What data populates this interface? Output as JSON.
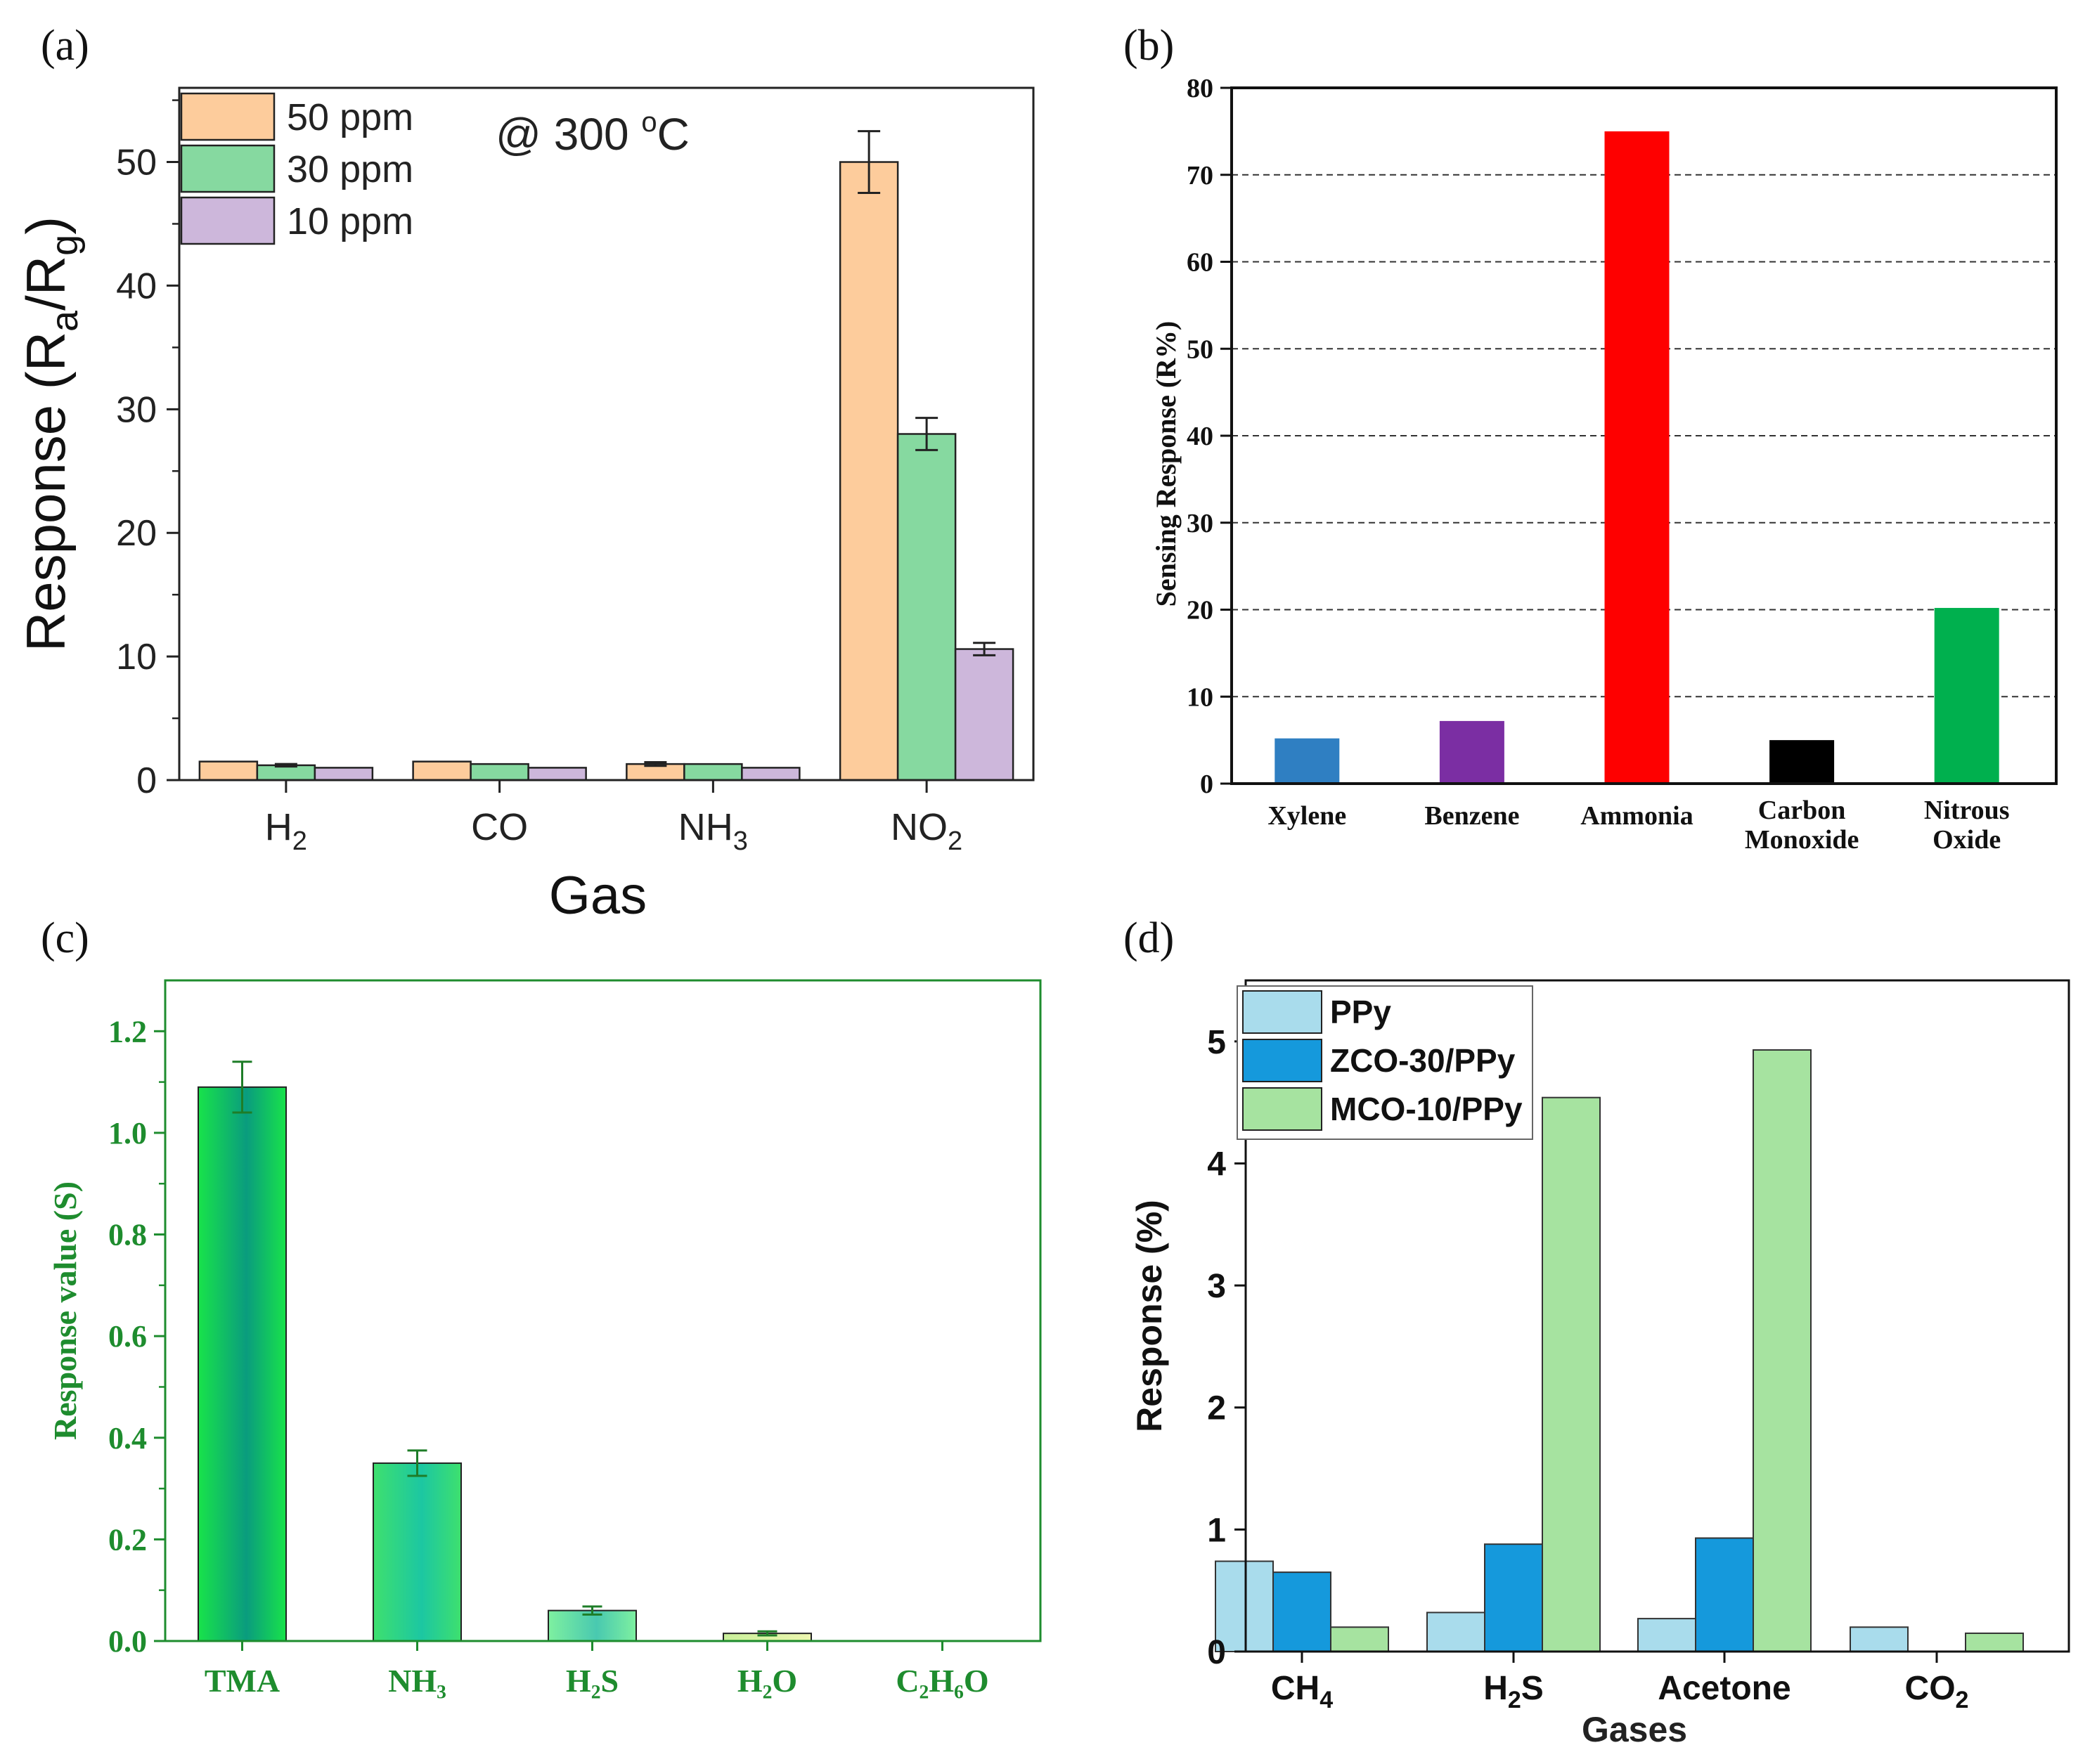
{
  "panels": [
    {
      "letter": "(a)",
      "chart_data": {
        "type": "bar",
        "categories": [
          "H2",
          "CO",
          "NH3",
          "NO2"
        ],
        "category_labels": [
          {
            "main": "H",
            "sub": "2",
            "tail": ""
          },
          {
            "main": "CO",
            "sub": "",
            "tail": ""
          },
          {
            "main": "NH",
            "sub": "3",
            "tail": ""
          },
          {
            "main": "NO",
            "sub": "2",
            "tail": ""
          }
        ],
        "series": [
          {
            "name": "50 ppm",
            "values": [
              1.5,
              1.5,
              1.3,
              50.0
            ],
            "errors": [
              0,
              0,
              0.15,
              2.5
            ],
            "color": "#fdcc9c"
          },
          {
            "name": "30 ppm",
            "values": [
              1.2,
              1.3,
              1.3,
              28.0
            ],
            "errors": [
              0.1,
              0,
              0,
              1.3
            ],
            "color": "#86d9a0"
          },
          {
            "name": "10 ppm",
            "values": [
              1.0,
              1.0,
              1.0,
              10.6
            ],
            "errors": [
              0,
              0,
              0,
              0.5
            ],
            "color": "#cdb7db"
          }
        ],
        "annotation": {
          "prefix": "@ 300 ",
          "sup": "o",
          "suffix": "C"
        },
        "ylabel": {
          "pre": "Response (R",
          "sub1": "a",
          "mid": "/R",
          "sub2": "g",
          "post": ")"
        },
        "xlabel": "Gas",
        "ylim": [
          0,
          56
        ],
        "yticks": [
          0,
          10,
          20,
          30,
          40,
          50
        ],
        "legend_position": "top-left",
        "grid": false
      }
    },
    {
      "letter": "(b)",
      "chart_data": {
        "type": "bar",
        "categories": [
          "Xylene",
          "Benzene",
          "Ammonia",
          "Carbon Monoxide",
          "Nitrous Oxide"
        ],
        "category_lines": [
          [
            "Xylene"
          ],
          [
            "Benzene"
          ],
          [
            "Ammonia"
          ],
          [
            "Carbon",
            "Monoxide"
          ],
          [
            "Nitrous",
            "Oxide"
          ]
        ],
        "values": [
          5.2,
          7.2,
          75.0,
          5.0,
          20.2
        ],
        "colors": [
          "#2f7fc2",
          "#7b2ea3",
          "#fe0000",
          "#000000",
          "#00b04e"
        ],
        "ylabel": "Sensing Response (R%)",
        "xlabel": "",
        "ylim": [
          0,
          80
        ],
        "yticks": [
          0,
          10,
          20,
          30,
          40,
          50,
          60,
          70,
          80
        ],
        "grid": "horizontal dashed"
      }
    },
    {
      "letter": "(c)",
      "chart_data": {
        "type": "bar",
        "categories": [
          "TMA",
          "NH3",
          "H2S",
          "H2O",
          "C2H6O"
        ],
        "category_labels": [
          "TMA",
          "NH₃",
          "H₂S",
          "H₂O",
          "C₂H₆O"
        ],
        "values": [
          1.09,
          0.35,
          0.06,
          0.015,
          0.0
        ],
        "errors": [
          0.05,
          0.025,
          0.008,
          0.004,
          0
        ],
        "ylabel": "Response value (S)",
        "xlabel": "",
        "ylim": [
          0,
          1.3
        ],
        "yticks": [
          0.0,
          0.2,
          0.4,
          0.6,
          0.8,
          1.0,
          1.2
        ],
        "ytick_labels": [
          "0.0",
          "0.2",
          "0.4",
          "0.6",
          "0.8",
          "1.0",
          "1.2"
        ],
        "axis_color": "#1e8c2e",
        "grid": false
      }
    },
    {
      "letter": "(d)",
      "chart_data": {
        "type": "bar",
        "categories": [
          "CH4",
          "H2S",
          "Acetone",
          "CO2"
        ],
        "category_labels": [
          {
            "main": "CH",
            "sub": "4",
            "tail": ""
          },
          {
            "main": "H",
            "sub": "2",
            "tail": "S"
          },
          {
            "main": "Acetone",
            "sub": "",
            "tail": ""
          },
          {
            "main": "CO",
            "sub": "2",
            "tail": ""
          }
        ],
        "series": [
          {
            "name": "PPy",
            "values": [
              0.74,
              0.32,
              0.27,
              0.2
            ],
            "color": "#a9dcec"
          },
          {
            "name": "ZCO-30/PPy",
            "values": [
              0.65,
              0.88,
              0.93,
              0.0
            ],
            "color": "#1599dc"
          },
          {
            "name": "MCO-10/PPy",
            "values": [
              0.2,
              4.54,
              4.93,
              0.15
            ],
            "color": "#a6e3a0"
          }
        ],
        "ylabel": "Response (%)",
        "xlabel": "Gases",
        "ylim": [
          0,
          5.5
        ],
        "yticks": [
          0,
          1,
          2,
          3,
          4,
          5
        ],
        "legend_position": "top-left",
        "grid": false
      }
    }
  ]
}
